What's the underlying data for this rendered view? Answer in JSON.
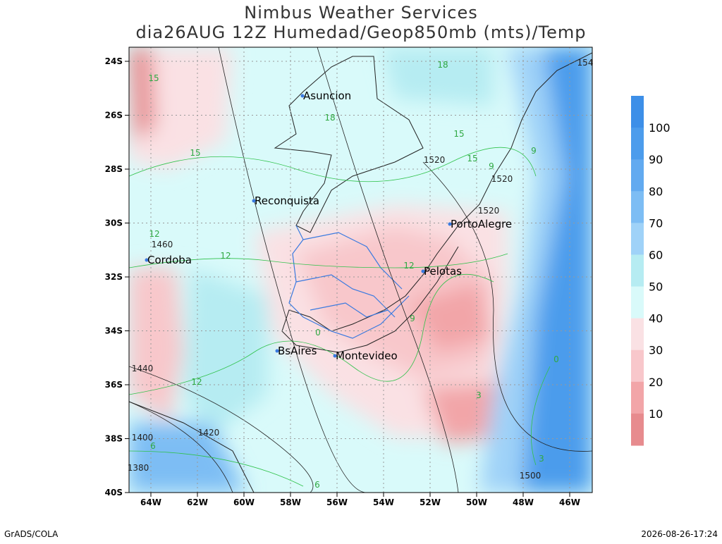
{
  "header": {
    "title": "Nimbus Weather Services",
    "subtitle": "dia26AUG 12Z Humedad/Geop850mb (mts)/Temp"
  },
  "map": {
    "lat_ticks": [
      "24S",
      "26S",
      "28S",
      "30S",
      "32S",
      "34S",
      "36S",
      "38S",
      "40S"
    ],
    "lon_ticks": [
      "64W",
      "62W",
      "60W",
      "58W",
      "56W",
      "54W",
      "52W",
      "50W",
      "48W",
      "46W"
    ],
    "cities": [
      "Asuncion",
      "Reconquista",
      "Cordoba",
      "PortoAlegre",
      "Pelotas",
      "BsAires",
      "Montevideo"
    ],
    "height_labels": [
      "1520",
      "1520",
      "1520",
      "1500",
      "1460",
      "1440",
      "1420",
      "1400",
      "1380",
      "154"
    ],
    "temp_labels": [
      "18",
      "18",
      "15",
      "15",
      "15",
      "15",
      "12",
      "12",
      "12",
      "12",
      "9",
      "9",
      "9",
      "6",
      "6",
      "3",
      "0",
      "0",
      "3"
    ]
  },
  "colorbar": {
    "labels": [
      "100",
      "90",
      "80",
      "70",
      "60",
      "50",
      "40",
      "30",
      "20",
      "10"
    ]
  },
  "footer": {
    "left": "GrADS/COLA",
    "right": "2026-08-26-17:24"
  }
}
